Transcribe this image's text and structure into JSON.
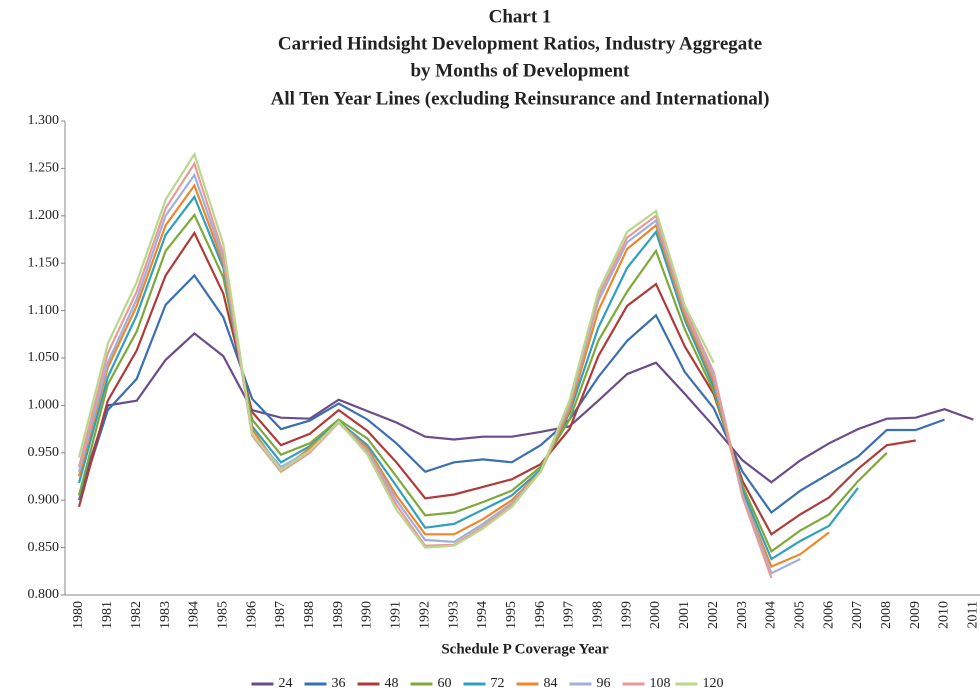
{
  "chart_data": {
    "type": "line",
    "title": [
      "Chart 1",
      "Carried Hindsight Development Ratios, Industry Aggregate",
      "by Months of Development",
      "All Ten Year Lines (excluding Reinsurance and International)"
    ],
    "x_label": "Schedule P Coverage Year",
    "categories": [
      "1980",
      "1981",
      "1982",
      "1983",
      "1984",
      "1985",
      "1986",
      "1987",
      "1988",
      "1989",
      "1990",
      "1991",
      "1992",
      "1993",
      "1994",
      "1995",
      "1996",
      "1997",
      "1998",
      "1999",
      "2000",
      "2001",
      "2002",
      "2003",
      "2004",
      "2005",
      "2006",
      "2007",
      "2008",
      "2009",
      "2010",
      "2011"
    ],
    "ylim": [
      0.8,
      1.3
    ],
    "yticks": [
      {
        "value": 0.8,
        "label": "0.800"
      },
      {
        "value": 0.85,
        "label": "0.850"
      },
      {
        "value": 0.9,
        "label": "0.900"
      },
      {
        "value": 0.95,
        "label": "0.950"
      },
      {
        "value": 1.0,
        "label": "1.000"
      },
      {
        "value": 1.05,
        "label": "1.050"
      },
      {
        "value": 1.1,
        "label": "1.100"
      },
      {
        "value": 1.15,
        "label": "1.150"
      },
      {
        "value": 1.2,
        "label": "1.200"
      },
      {
        "value": 1.25,
        "label": "1.250"
      },
      {
        "value": 1.3,
        "label": "1.300"
      }
    ],
    "legend": "bottom",
    "series": [
      {
        "name": "24",
        "color": "#6b4c8a",
        "values": [
          0.905,
          1.0,
          1.005,
          1.048,
          1.076,
          1.052,
          0.995,
          0.987,
          0.986,
          1.006,
          0.994,
          0.982,
          0.967,
          0.964,
          0.967,
          0.967,
          0.972,
          0.978,
          1.005,
          1.033,
          1.045,
          1.012,
          0.978,
          0.942,
          0.919,
          0.942,
          0.96,
          0.975,
          0.986,
          0.987,
          0.996,
          0.985
        ]
      },
      {
        "name": "36",
        "color": "#3a6fb0",
        "values": [
          0.9,
          0.995,
          1.028,
          1.106,
          1.137,
          1.093,
          1.007,
          0.975,
          0.984,
          1.002,
          0.985,
          0.96,
          0.93,
          0.94,
          0.943,
          0.94,
          0.958,
          0.985,
          1.03,
          1.068,
          1.095,
          1.035,
          0.997,
          0.93,
          0.887,
          0.91,
          0.928,
          0.946,
          0.974,
          0.974,
          0.985,
          null
        ]
      },
      {
        "name": "48",
        "color": "#b03a3a",
        "values": [
          0.893,
          1.005,
          1.058,
          1.137,
          1.182,
          1.118,
          0.993,
          0.958,
          0.97,
          0.995,
          0.973,
          0.94,
          0.902,
          0.906,
          0.914,
          0.922,
          0.938,
          0.975,
          1.052,
          1.105,
          1.128,
          1.062,
          1.012,
          0.92,
          0.864,
          0.885,
          0.903,
          0.933,
          0.958,
          0.963,
          null,
          null
        ]
      },
      {
        "name": "60",
        "color": "#7fa83a",
        "values": [
          0.905,
          1.022,
          1.078,
          1.163,
          1.201,
          1.135,
          0.985,
          0.948,
          0.96,
          0.985,
          0.965,
          0.925,
          0.884,
          0.887,
          0.898,
          0.91,
          0.935,
          0.985,
          1.068,
          1.12,
          1.163,
          1.08,
          1.015,
          0.915,
          0.846,
          0.868,
          0.885,
          0.92,
          0.95,
          null,
          null,
          null
        ]
      },
      {
        "name": "72",
        "color": "#2fa0c0",
        "values": [
          0.918,
          1.03,
          1.095,
          1.18,
          1.22,
          1.145,
          0.978,
          0.94,
          0.957,
          0.983,
          0.958,
          0.915,
          0.871,
          0.875,
          0.89,
          0.905,
          0.932,
          0.992,
          1.082,
          1.145,
          1.183,
          1.09,
          1.02,
          0.91,
          0.838,
          0.857,
          0.873,
          0.913,
          null,
          null,
          null,
          null
        ]
      },
      {
        "name": "84",
        "color": "#f0862a",
        "values": [
          0.925,
          1.04,
          1.105,
          1.19,
          1.232,
          1.15,
          0.975,
          0.932,
          0.955,
          0.982,
          0.955,
          0.905,
          0.864,
          0.864,
          0.88,
          0.9,
          0.93,
          0.995,
          1.1,
          1.165,
          1.19,
          1.095,
          1.025,
          0.905,
          0.83,
          0.843,
          0.866,
          null,
          null,
          null,
          null,
          null
        ]
      },
      {
        "name": "96",
        "color": "#9fb0dc",
        "values": [
          0.93,
          1.045,
          1.112,
          1.2,
          1.243,
          1.155,
          0.97,
          0.935,
          0.952,
          0.982,
          0.952,
          0.9,
          0.858,
          0.856,
          0.875,
          0.897,
          0.93,
          1.0,
          1.11,
          1.172,
          1.195,
          1.1,
          1.03,
          0.905,
          0.823,
          0.838,
          null,
          null,
          null,
          null,
          null,
          null
        ]
      },
      {
        "name": "108",
        "color": "#e89a9a",
        "values": [
          0.935,
          1.055,
          1.12,
          1.208,
          1.255,
          1.16,
          0.968,
          0.93,
          0.95,
          0.982,
          0.95,
          0.895,
          0.852,
          0.853,
          0.872,
          0.895,
          0.93,
          1.003,
          1.115,
          1.177,
          1.2,
          1.102,
          1.035,
          0.903,
          0.818,
          null,
          null,
          null,
          null,
          null,
          null,
          null
        ]
      },
      {
        "name": "120",
        "color": "#b8d88a",
        "values": [
          0.945,
          1.065,
          1.13,
          1.217,
          1.265,
          1.17,
          0.97,
          0.932,
          0.952,
          0.983,
          0.948,
          0.89,
          0.85,
          0.852,
          0.87,
          0.893,
          0.93,
          1.005,
          1.12,
          1.183,
          1.205,
          1.105,
          1.045,
          null,
          null,
          null,
          null,
          null,
          null,
          null,
          null,
          null
        ]
      }
    ]
  }
}
